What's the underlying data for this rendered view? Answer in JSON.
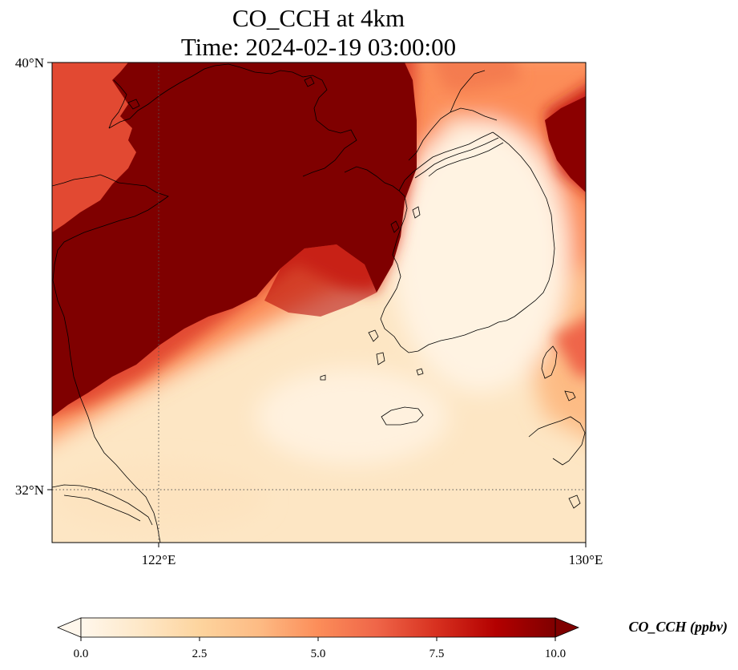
{
  "title": {
    "line1": "CO_CCH at 4km",
    "line2": "Time: 2024-02-19 03:00:00"
  },
  "map": {
    "lon_range": [
      120,
      130
    ],
    "lat_range": [
      31,
      40
    ],
    "x_ticks": [
      {
        "value": 122,
        "label": "122°E"
      },
      {
        "value": 130,
        "label": "130°E"
      }
    ],
    "y_ticks": [
      {
        "value": 40,
        "label": "40°N"
      },
      {
        "value": 32,
        "label": "32°N"
      }
    ],
    "gridlines": "dotted"
  },
  "colorbar": {
    "label": "CO_CCH (ppbv)",
    "cmap": "OrRd",
    "range": [
      0,
      10
    ],
    "extend": "both",
    "ticks": [
      {
        "value": 0,
        "label": "0.0"
      },
      {
        "value": 2.5,
        "label": "2.5"
      },
      {
        "value": 5,
        "label": "5.0"
      },
      {
        "value": 7.5,
        "label": "7.5"
      },
      {
        "value": 10,
        "label": "10.0"
      }
    ],
    "colors": [
      "#fff7ec",
      "#fee8c8",
      "#fdd49e",
      "#fdbb84",
      "#fc8d59",
      "#ef6548",
      "#d7301f",
      "#b30000",
      "#7f0000"
    ]
  }
}
